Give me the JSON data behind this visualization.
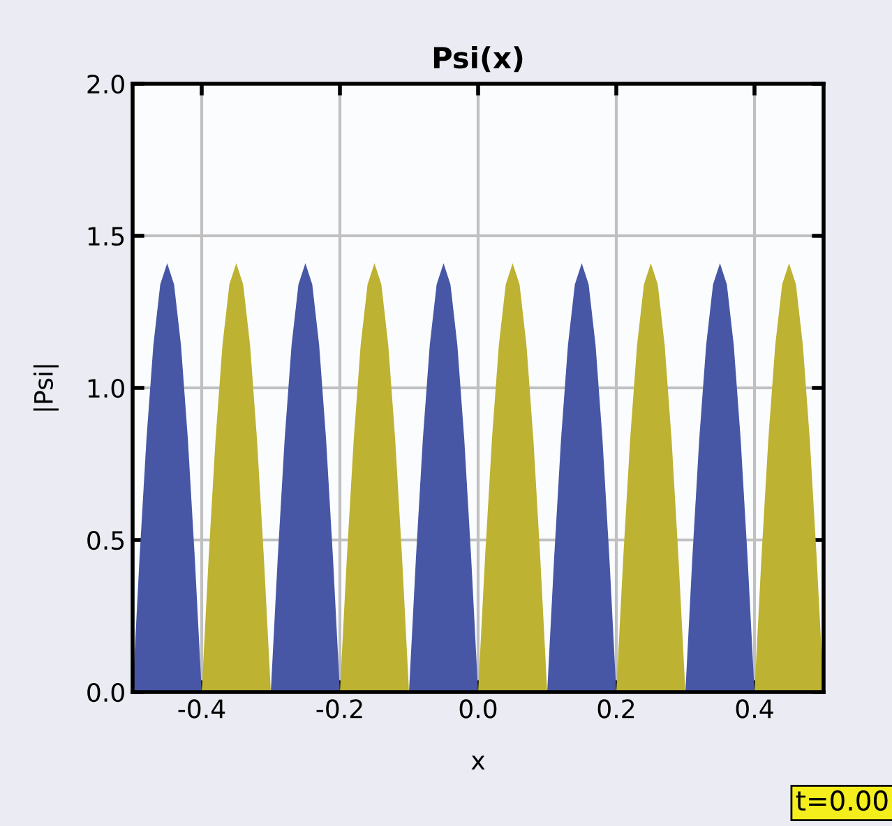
{
  "chart_data": {
    "type": "area",
    "title": "Psi(x)",
    "xlabel": "x",
    "ylabel": "|Psi|",
    "xlim": [
      -0.5,
      0.5
    ],
    "ylim": [
      0.0,
      2.0
    ],
    "xticks": [
      -0.4,
      -0.2,
      {
        "value": 0,
        "label": "0.0"
      },
      0.2,
      0.4
    ],
    "yticks": [
      {
        "value": 0,
        "label": "0.0"
      },
      0.5,
      {
        "value": 1,
        "label": "1.0"
      },
      1.5,
      {
        "value": 2,
        "label": "2.0"
      }
    ],
    "grid": true,
    "annotations": [
      "t=0.00"
    ],
    "series": [
      {
        "color": "#4757a6",
        "x": [
          -0.5,
          -0.49,
          -0.48,
          -0.47,
          -0.46,
          -0.45,
          -0.44,
          -0.43,
          -0.42,
          -0.41,
          -0.4,
          -0.35,
          -0.3,
          -0.29,
          -0.28,
          -0.27,
          -0.26,
          -0.25,
          -0.24,
          -0.23,
          -0.22,
          -0.21,
          -0.2,
          -0.15,
          -0.1,
          -0.09,
          -0.08,
          -0.07,
          -0.06,
          -0.05,
          -0.04,
          -0.03,
          -0.02,
          -0.01,
          0.0,
          0.05,
          0.1,
          0.11,
          0.12,
          0.13,
          0.14,
          0.15,
          0.16,
          0.17,
          0.18,
          0.19,
          0.2,
          0.25,
          0.3,
          0.31,
          0.32,
          0.33,
          0.34,
          0.35,
          0.36,
          0.37,
          0.38,
          0.39,
          0.4
        ],
        "values": [
          0,
          0.44,
          0.83,
          1.14,
          1.34,
          1.41,
          1.34,
          1.14,
          0.83,
          0.44,
          0,
          null,
          0,
          0.44,
          0.83,
          1.14,
          1.34,
          1.41,
          1.34,
          1.14,
          0.83,
          0.44,
          0,
          null,
          0,
          0.44,
          0.83,
          1.14,
          1.34,
          1.41,
          1.34,
          1.14,
          0.83,
          0.44,
          0,
          null,
          0,
          0.44,
          0.83,
          1.14,
          1.34,
          1.41,
          1.34,
          1.14,
          0.83,
          0.44,
          0,
          null,
          0,
          0.44,
          0.83,
          1.14,
          1.34,
          1.41,
          1.34,
          1.14,
          0.83,
          0.44,
          0
        ]
      },
      {
        "color": "#bdb232",
        "x": [
          -0.4,
          -0.39,
          -0.38,
          -0.37,
          -0.36,
          -0.35,
          -0.34,
          -0.33,
          -0.32,
          -0.31,
          -0.3,
          -0.25,
          -0.2,
          -0.19,
          -0.18,
          -0.17,
          -0.16,
          -0.15,
          -0.14,
          -0.13,
          -0.12,
          -0.11,
          -0.1,
          -0.05,
          0.0,
          0.01,
          0.02,
          0.03,
          0.04,
          0.05,
          0.06,
          0.07,
          0.08,
          0.09,
          0.1,
          0.15,
          0.2,
          0.21,
          0.22,
          0.23,
          0.24,
          0.25,
          0.26,
          0.27,
          0.28,
          0.29,
          0.3,
          0.35,
          0.4,
          0.41,
          0.42,
          0.43,
          0.44,
          0.45,
          0.46,
          0.47,
          0.48,
          0.49,
          0.5
        ],
        "values": [
          0,
          0.44,
          0.83,
          1.14,
          1.34,
          1.41,
          1.34,
          1.14,
          0.83,
          0.44,
          0,
          null,
          0,
          0.44,
          0.83,
          1.14,
          1.34,
          1.41,
          1.34,
          1.14,
          0.83,
          0.44,
          0,
          null,
          0,
          0.44,
          0.83,
          1.14,
          1.34,
          1.41,
          1.34,
          1.14,
          0.83,
          0.44,
          0,
          null,
          0,
          0.44,
          0.83,
          1.14,
          1.34,
          1.41,
          1.34,
          1.14,
          0.83,
          0.44,
          0,
          null,
          0,
          0.44,
          0.83,
          1.14,
          1.34,
          1.41,
          1.34,
          1.14,
          0.83,
          0.44,
          0
        ]
      }
    ]
  }
}
